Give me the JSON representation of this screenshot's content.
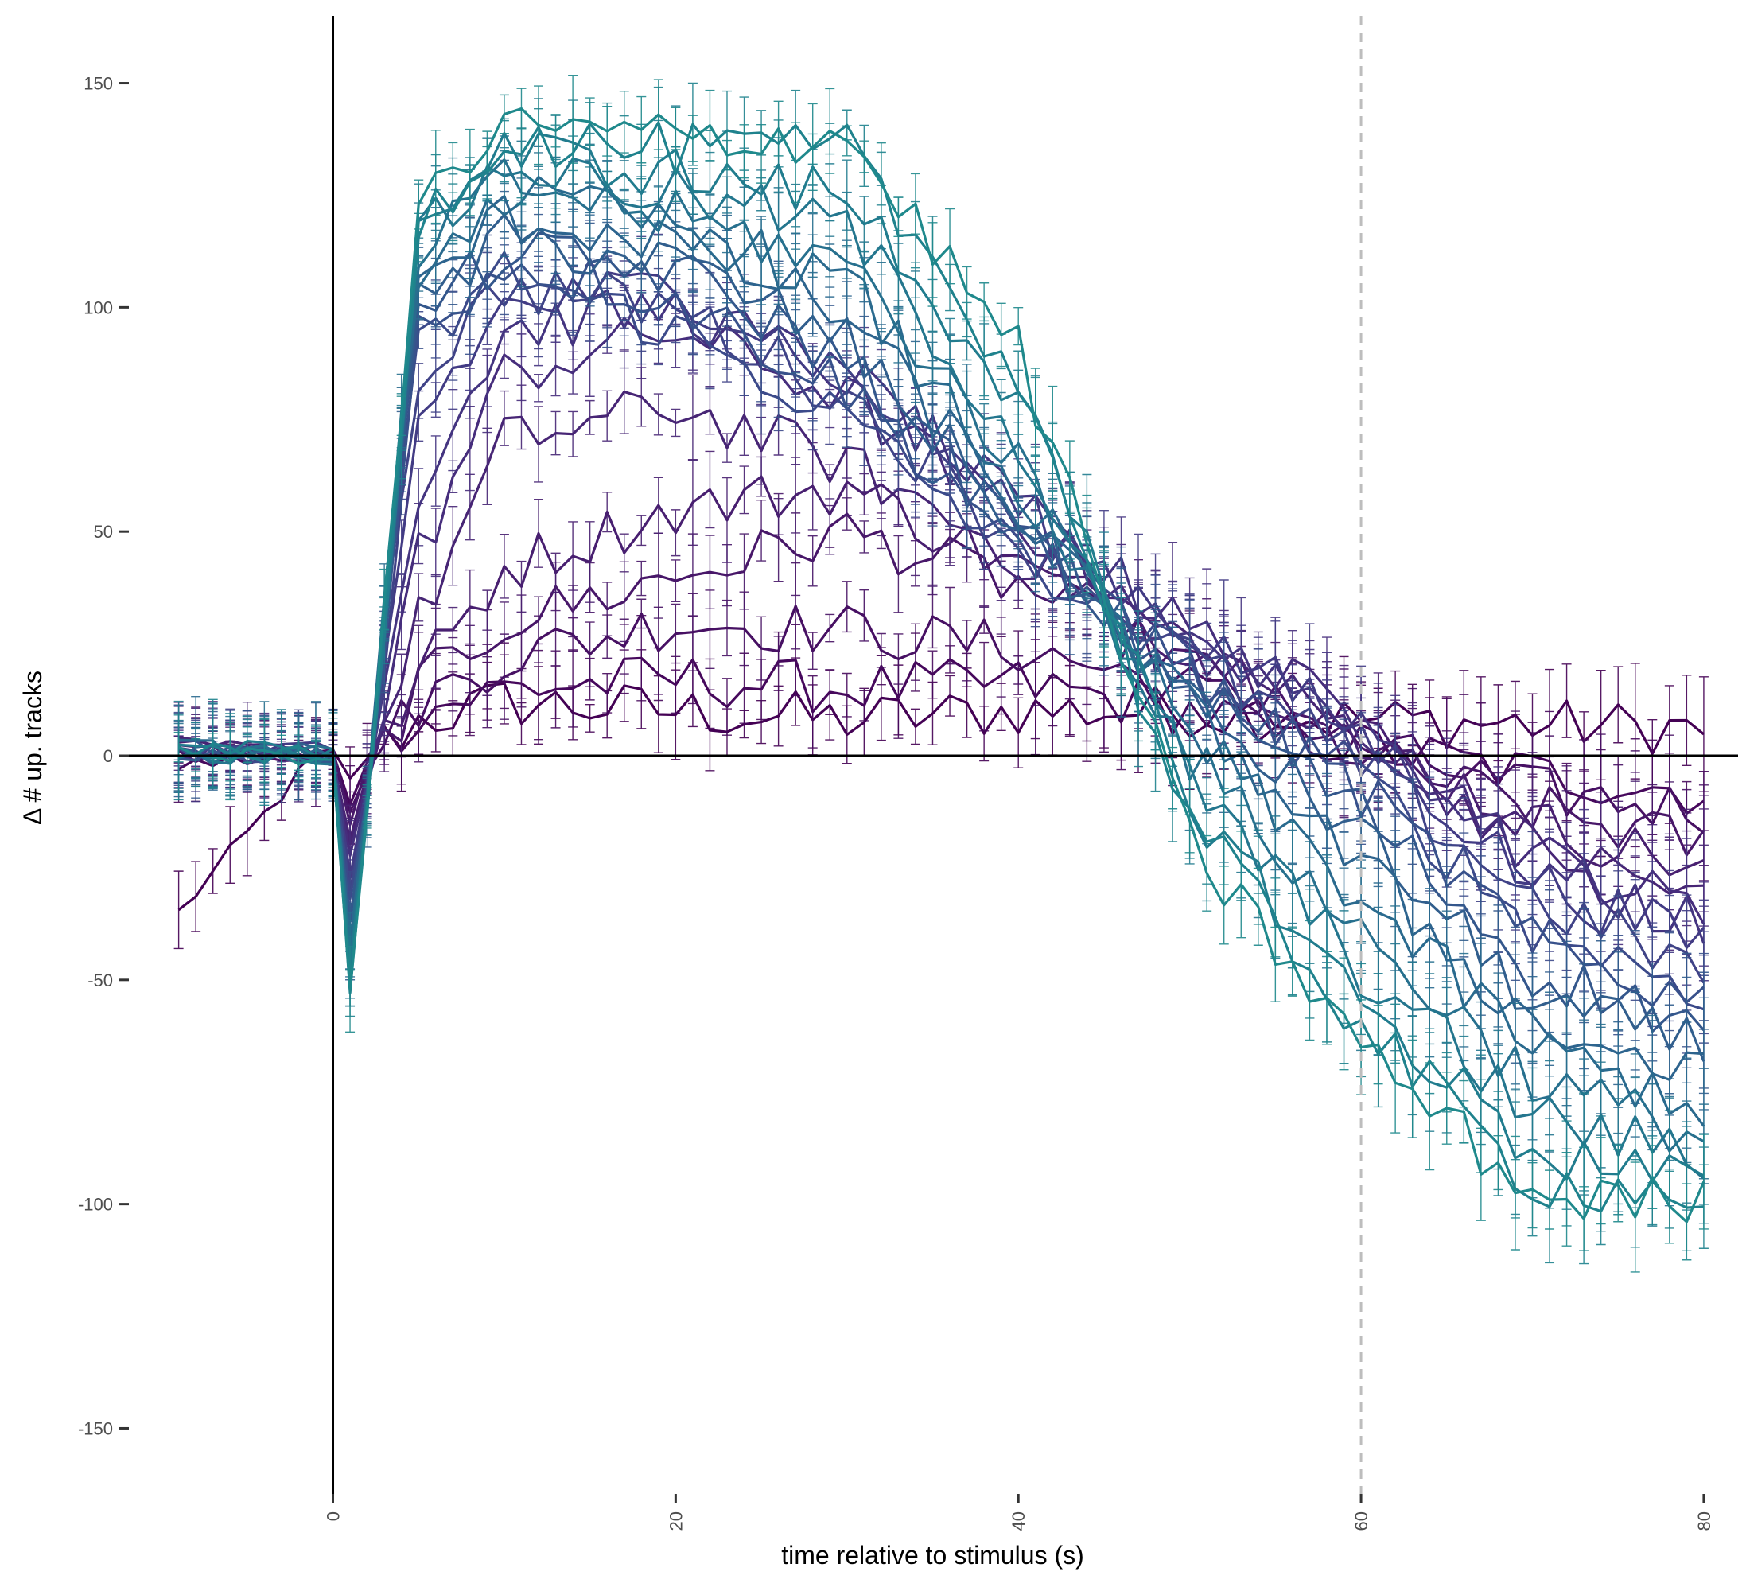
{
  "chart_data": {
    "type": "line",
    "title": "",
    "xlabel": "time relative to stimulus (s)",
    "ylabel": "Δ # up. tracks",
    "xlim": [
      -12,
      82
    ],
    "ylim": [
      -165,
      165
    ],
    "x_ticks": [
      0,
      20,
      40,
      60,
      80
    ],
    "x_tick_labels": [
      "0",
      "20",
      "40",
      "60",
      "80"
    ],
    "y_ticks": [
      150,
      100,
      50,
      0,
      -50,
      -100,
      -150
    ],
    "y_tick_labels": [
      "150",
      "100",
      "50",
      "0",
      "-50",
      "-100",
      "-150"
    ],
    "x_tick_label_rotation": -90,
    "grid": false,
    "legend": "none",
    "zero_lines": {
      "x": 0,
      "y": 0,
      "color": "#000000"
    },
    "reference_line": {
      "x": 60,
      "style": "dashed",
      "color": "#bdbdbd"
    },
    "error_bars": true,
    "x_range": [
      -9,
      80
    ],
    "series": [
      {
        "color": "#440154",
        "knots": [
          [
            -9,
            -35
          ],
          [
            -1,
            0
          ],
          [
            0,
            0
          ],
          [
            1,
            -6
          ],
          [
            2,
            0
          ],
          [
            5,
            8
          ],
          [
            10,
            12
          ],
          [
            20,
            10
          ],
          [
            30,
            8
          ],
          [
            40,
            10
          ],
          [
            50,
            10
          ],
          [
            60,
            8
          ],
          [
            70,
            7
          ],
          [
            80,
            6
          ]
        ]
      },
      {
        "color": "#46085c",
        "knots": [
          [
            -9,
            -2
          ],
          [
            -1,
            0
          ],
          [
            0,
            0
          ],
          [
            1,
            -10
          ],
          [
            2,
            0
          ],
          [
            5,
            10
          ],
          [
            10,
            15
          ],
          [
            20,
            17
          ],
          [
            30,
            15
          ],
          [
            40,
            16
          ],
          [
            50,
            10
          ],
          [
            60,
            2
          ],
          [
            70,
            -4
          ],
          [
            80,
            -8
          ]
        ]
      },
      {
        "color": "#471063",
        "knots": [
          [
            -9,
            2
          ],
          [
            -1,
            0
          ],
          [
            0,
            0
          ],
          [
            1,
            -14
          ],
          [
            2,
            -2
          ],
          [
            5,
            12
          ],
          [
            10,
            22
          ],
          [
            20,
            30
          ],
          [
            30,
            28
          ],
          [
            40,
            24
          ],
          [
            50,
            15
          ],
          [
            60,
            2
          ],
          [
            70,
            -8
          ],
          [
            80,
            -12
          ]
        ]
      },
      {
        "color": "#481769",
        "knots": [
          [
            -9,
            0
          ],
          [
            -1,
            1
          ],
          [
            0,
            0
          ],
          [
            1,
            -16
          ],
          [
            2,
            -3
          ],
          [
            5,
            15
          ],
          [
            10,
            30
          ],
          [
            20,
            40
          ],
          [
            30,
            50
          ],
          [
            40,
            38
          ],
          [
            50,
            20
          ],
          [
            60,
            0
          ],
          [
            70,
            -12
          ],
          [
            80,
            -20
          ]
        ]
      },
      {
        "color": "#481f70",
        "knots": [
          [
            -9,
            3
          ],
          [
            -1,
            0
          ],
          [
            0,
            0
          ],
          [
            1,
            -18
          ],
          [
            2,
            -4
          ],
          [
            5,
            18
          ],
          [
            10,
            42
          ],
          [
            20,
            55
          ],
          [
            30,
            60
          ],
          [
            40,
            42
          ],
          [
            50,
            25
          ],
          [
            60,
            5
          ],
          [
            70,
            -15
          ],
          [
            80,
            -25
          ]
        ]
      },
      {
        "color": "#472575",
        "knots": [
          [
            -9,
            2
          ],
          [
            -1,
            1
          ],
          [
            0,
            0
          ],
          [
            1,
            -20
          ],
          [
            2,
            -5
          ],
          [
            5,
            30
          ],
          [
            10,
            70
          ],
          [
            20,
            78
          ],
          [
            30,
            65
          ],
          [
            40,
            45
          ],
          [
            50,
            25
          ],
          [
            60,
            5
          ],
          [
            70,
            -20
          ],
          [
            80,
            -32
          ]
        ]
      },
      {
        "color": "#462d7c",
        "knots": [
          [
            -9,
            0
          ],
          [
            -1,
            0
          ],
          [
            0,
            0
          ],
          [
            1,
            -22
          ],
          [
            2,
            -6
          ],
          [
            5,
            45
          ],
          [
            10,
            85
          ],
          [
            20,
            95
          ],
          [
            30,
            80
          ],
          [
            40,
            52
          ],
          [
            50,
            28
          ],
          [
            60,
            8
          ],
          [
            70,
            -22
          ],
          [
            80,
            -35
          ]
        ]
      },
      {
        "color": "#443480",
        "knots": [
          [
            -9,
            1
          ],
          [
            -1,
            0
          ],
          [
            0,
            0
          ],
          [
            1,
            -25
          ],
          [
            2,
            -6
          ],
          [
            5,
            60
          ],
          [
            10,
            95
          ],
          [
            20,
            100
          ],
          [
            30,
            85
          ],
          [
            40,
            55
          ],
          [
            50,
            28
          ],
          [
            60,
            8
          ],
          [
            70,
            -25
          ],
          [
            80,
            -38
          ]
        ]
      },
      {
        "color": "#423b84",
        "knots": [
          [
            -9,
            2
          ],
          [
            -1,
            1
          ],
          [
            0,
            0
          ],
          [
            1,
            -28
          ],
          [
            2,
            -7
          ],
          [
            5,
            75
          ],
          [
            10,
            100
          ],
          [
            20,
            105
          ],
          [
            30,
            85
          ],
          [
            40,
            55
          ],
          [
            50,
            28
          ],
          [
            60,
            5
          ],
          [
            70,
            -28
          ],
          [
            80,
            -42
          ]
        ]
      },
      {
        "color": "#404387",
        "knots": [
          [
            -9,
            0
          ],
          [
            -1,
            0
          ],
          [
            0,
            0
          ],
          [
            1,
            -30
          ],
          [
            2,
            -8
          ],
          [
            5,
            85
          ],
          [
            10,
            105
          ],
          [
            20,
            100
          ],
          [
            30,
            80
          ],
          [
            40,
            48
          ],
          [
            50,
            22
          ],
          [
            60,
            -2
          ],
          [
            70,
            -32
          ],
          [
            80,
            -48
          ]
        ]
      },
      {
        "color": "#3c4a8a",
        "knots": [
          [
            -9,
            1
          ],
          [
            -1,
            0
          ],
          [
            0,
            0
          ],
          [
            1,
            -32
          ],
          [
            2,
            -8
          ],
          [
            5,
            90
          ],
          [
            10,
            108
          ],
          [
            20,
            95
          ],
          [
            30,
            75
          ],
          [
            40,
            45
          ],
          [
            50,
            20
          ],
          [
            60,
            -5
          ],
          [
            70,
            -38
          ],
          [
            80,
            -52
          ]
        ]
      },
      {
        "color": "#38518b",
        "knots": [
          [
            -9,
            2
          ],
          [
            -1,
            1
          ],
          [
            0,
            0
          ],
          [
            1,
            -35
          ],
          [
            2,
            -9
          ],
          [
            5,
            95
          ],
          [
            10,
            110
          ],
          [
            20,
            102
          ],
          [
            30,
            82
          ],
          [
            40,
            48
          ],
          [
            50,
            18
          ],
          [
            60,
            -8
          ],
          [
            70,
            -42
          ],
          [
            80,
            -55
          ]
        ]
      },
      {
        "color": "#34578c",
        "knots": [
          [
            -9,
            0
          ],
          [
            -1,
            0
          ],
          [
            0,
            0
          ],
          [
            1,
            -37
          ],
          [
            2,
            -9
          ],
          [
            5,
            98
          ],
          [
            10,
            112
          ],
          [
            20,
            108
          ],
          [
            30,
            88
          ],
          [
            40,
            50
          ],
          [
            50,
            15
          ],
          [
            60,
            -12
          ],
          [
            70,
            -48
          ],
          [
            80,
            -60
          ]
        ]
      },
      {
        "color": "#315e8d",
        "knots": [
          [
            -9,
            1
          ],
          [
            -1,
            1
          ],
          [
            0,
            0
          ],
          [
            1,
            -40
          ],
          [
            2,
            -10
          ],
          [
            5,
            100
          ],
          [
            10,
            115
          ],
          [
            20,
            110
          ],
          [
            30,
            92
          ],
          [
            40,
            52
          ],
          [
            50,
            12
          ],
          [
            60,
            -18
          ],
          [
            70,
            -55
          ],
          [
            80,
            -65
          ]
        ]
      },
      {
        "color": "#2d648e",
        "knots": [
          [
            -9,
            0
          ],
          [
            -1,
            0
          ],
          [
            0,
            0
          ],
          [
            1,
            -42
          ],
          [
            2,
            -10
          ],
          [
            5,
            105
          ],
          [
            10,
            120
          ],
          [
            20,
            115
          ],
          [
            30,
            98
          ],
          [
            40,
            55
          ],
          [
            50,
            10
          ],
          [
            60,
            -25
          ],
          [
            70,
            -60
          ],
          [
            80,
            -72
          ]
        ]
      },
      {
        "color": "#2a6a8e",
        "knots": [
          [
            -9,
            2
          ],
          [
            -1,
            0
          ],
          [
            0,
            0
          ],
          [
            1,
            -44
          ],
          [
            2,
            -10
          ],
          [
            5,
            110
          ],
          [
            10,
            125
          ],
          [
            20,
            118
          ],
          [
            30,
            105
          ],
          [
            40,
            60
          ],
          [
            50,
            5
          ],
          [
            60,
            -32
          ],
          [
            70,
            -65
          ],
          [
            80,
            -78
          ]
        ]
      },
      {
        "color": "#27708e",
        "knots": [
          [
            -9,
            1
          ],
          [
            -1,
            1
          ],
          [
            0,
            0
          ],
          [
            1,
            -46
          ],
          [
            2,
            -11
          ],
          [
            5,
            112
          ],
          [
            10,
            128
          ],
          [
            20,
            120
          ],
          [
            30,
            110
          ],
          [
            40,
            65
          ],
          [
            50,
            0
          ],
          [
            60,
            -40
          ],
          [
            70,
            -72
          ],
          [
            80,
            -85
          ]
        ]
      },
      {
        "color": "#24768e",
        "knots": [
          [
            -9,
            0
          ],
          [
            -1,
            0
          ],
          [
            0,
            0
          ],
          [
            1,
            -48
          ],
          [
            2,
            -11
          ],
          [
            5,
            115
          ],
          [
            10,
            132
          ],
          [
            20,
            125
          ],
          [
            30,
            118
          ],
          [
            40,
            70
          ],
          [
            50,
            -5
          ],
          [
            60,
            -48
          ],
          [
            70,
            -80
          ],
          [
            80,
            -90
          ]
        ]
      },
      {
        "color": "#217c8e",
        "knots": [
          [
            -9,
            2
          ],
          [
            -1,
            1
          ],
          [
            0,
            0
          ],
          [
            1,
            -50
          ],
          [
            2,
            -11
          ],
          [
            5,
            118
          ],
          [
            10,
            135
          ],
          [
            20,
            130
          ],
          [
            30,
            125
          ],
          [
            40,
            80
          ],
          [
            50,
            -10
          ],
          [
            60,
            -55
          ],
          [
            70,
            -88
          ],
          [
            80,
            -95
          ]
        ]
      },
      {
        "color": "#1f828d",
        "knots": [
          [
            -9,
            1
          ],
          [
            -1,
            0
          ],
          [
            0,
            0
          ],
          [
            1,
            -52
          ],
          [
            2,
            -12
          ],
          [
            5,
            120
          ],
          [
            10,
            138
          ],
          [
            20,
            135
          ],
          [
            30,
            135
          ],
          [
            40,
            85
          ],
          [
            50,
            -15
          ],
          [
            60,
            -60
          ],
          [
            70,
            -95
          ],
          [
            80,
            -98
          ]
        ]
      },
      {
        "color": "#1f898c",
        "knots": [
          [
            -9,
            0
          ],
          [
            -1,
            0
          ],
          [
            0,
            0
          ],
          [
            1,
            -54
          ],
          [
            2,
            -12
          ],
          [
            5,
            122
          ],
          [
            10,
            140
          ],
          [
            20,
            138
          ],
          [
            30,
            138
          ],
          [
            40,
            90
          ],
          [
            50,
            -20
          ],
          [
            60,
            -65
          ],
          [
            70,
            -98
          ],
          [
            80,
            -100
          ]
        ]
      }
    ]
  }
}
